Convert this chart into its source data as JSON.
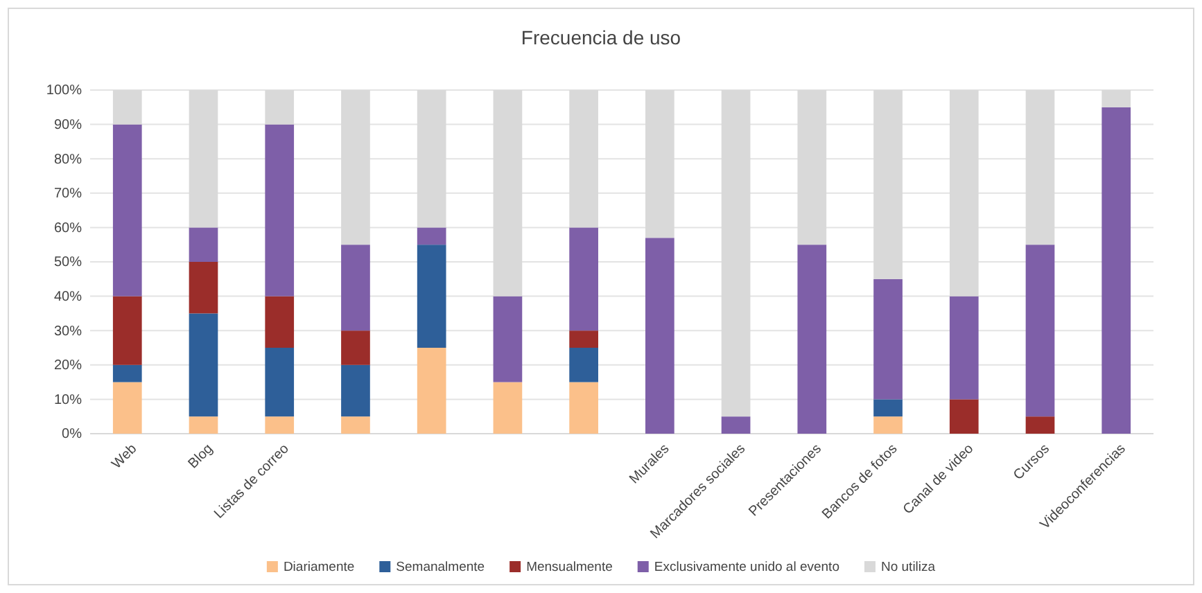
{
  "chart_data": {
    "type": "bar",
    "title": "Frecuencia de uso",
    "stacked": true,
    "grid": "y",
    "legend": "bottom",
    "categories": [
      "Web",
      "Blog",
      "Listas de correo",
      null,
      null,
      null,
      null,
      "Murales",
      "Marcadores sociales",
      "Presentaciones",
      "Bancos de fotos",
      "Canal de video",
      "Cursos",
      "Videoconferencias"
    ],
    "ylim": [
      0,
      100
    ],
    "yticks": [
      {
        "value": 0,
        "label": "0%"
      },
      {
        "value": 10,
        "label": "10%"
      },
      {
        "value": 20,
        "label": "20%"
      },
      {
        "value": 30,
        "label": "30%"
      },
      {
        "value": 40,
        "label": "40%"
      },
      {
        "value": 50,
        "label": "50%"
      },
      {
        "value": 60,
        "label": "60%"
      },
      {
        "value": 70,
        "label": "70%"
      },
      {
        "value": 80,
        "label": "80%"
      },
      {
        "value": 90,
        "label": "90%"
      },
      {
        "value": 100,
        "label": "100%"
      }
    ],
    "series": [
      {
        "name": "Diariamente",
        "color": "#fbc08a",
        "values": [
          15,
          5,
          5,
          5,
          25,
          15,
          15,
          0,
          0,
          0,
          5,
          0,
          0,
          0
        ]
      },
      {
        "name": "Semanalmente",
        "color": "#2e5f99",
        "values": [
          5,
          30,
          20,
          15,
          30,
          0,
          10,
          0,
          0,
          0,
          5,
          0,
          0,
          0
        ]
      },
      {
        "name": "Mensualmente",
        "color": "#9b2d2a",
        "values": [
          20,
          15,
          15,
          10,
          0,
          0,
          5,
          0,
          0,
          0,
          0,
          10,
          5,
          0
        ]
      },
      {
        "name": "Exclusivamente unido al evento",
        "color": "#7e5fa8",
        "values": [
          50,
          10,
          50,
          25,
          5,
          25,
          30,
          57,
          5,
          55,
          35,
          30,
          50,
          95
        ]
      },
      {
        "name": "No utiliza",
        "color": "#d9d9d9",
        "values": [
          10,
          40,
          10,
          45,
          40,
          60,
          40,
          43,
          95,
          45,
          55,
          60,
          45,
          5
        ]
      }
    ]
  }
}
